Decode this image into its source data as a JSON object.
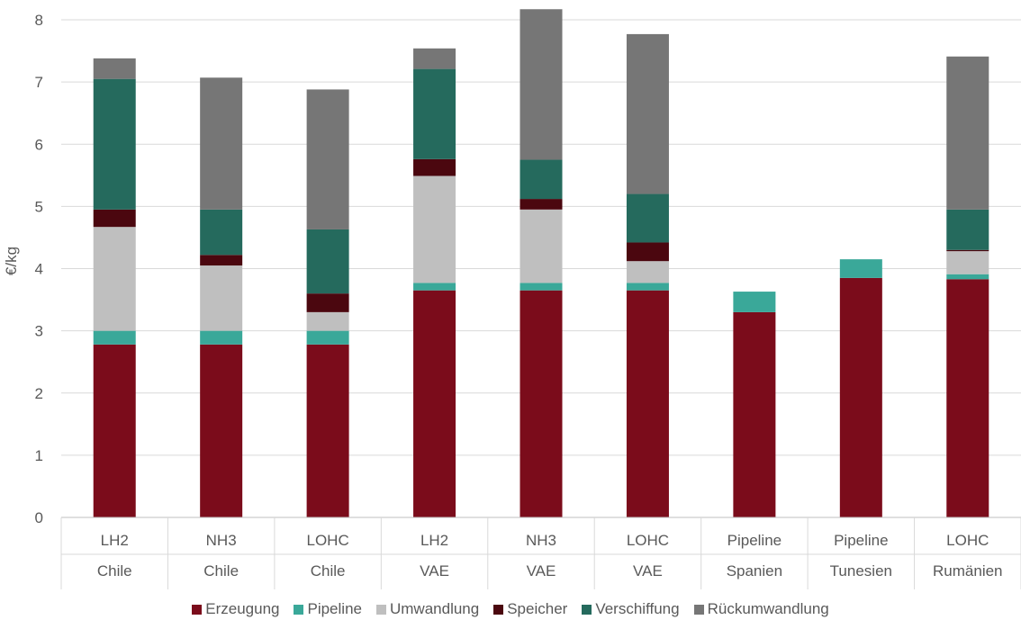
{
  "chart_data": {
    "type": "bar",
    "stacked": true,
    "ylabel": "€/kg",
    "ylim": [
      0,
      8
    ],
    "yticks": [
      "0",
      "1",
      "2",
      "3",
      "4",
      "5",
      "6",
      "7",
      "8"
    ],
    "grid": true,
    "legend_position": "bottom",
    "categories": [
      {
        "carrier": "LH2",
        "country": "Chile"
      },
      {
        "carrier": "NH3",
        "country": "Chile"
      },
      {
        "carrier": "LOHC",
        "country": "Chile"
      },
      {
        "carrier": "LH2",
        "country": "VAE"
      },
      {
        "carrier": "NH3",
        "country": "VAE"
      },
      {
        "carrier": "LOHC",
        "country": "VAE"
      },
      {
        "carrier": "Pipeline",
        "country": "Spanien"
      },
      {
        "carrier": "Pipeline",
        "country": "Tunesien"
      },
      {
        "carrier": "LOHC",
        "country": "Rumänien"
      }
    ],
    "series": [
      {
        "name": "Erzeugung",
        "color": "#7b0c1b",
        "values": [
          2.78,
          2.78,
          2.78,
          3.65,
          3.65,
          3.65,
          3.3,
          3.85,
          3.83
        ]
      },
      {
        "name": "Pipeline",
        "color": "#3aa899",
        "values": [
          0.22,
          0.22,
          0.22,
          0.12,
          0.12,
          0.12,
          0.33,
          0.3,
          0.08
        ]
      },
      {
        "name": "Umwandlung",
        "color": "#bfbfbf",
        "values": [
          1.67,
          1.05,
          0.3,
          1.72,
          1.18,
          0.35,
          0,
          0,
          0.37
        ]
      },
      {
        "name": "Speicher",
        "color": "#4b070f",
        "values": [
          0.28,
          0.17,
          0.3,
          0.27,
          0.17,
          0.3,
          0,
          0,
          0.02
        ]
      },
      {
        "name": "Verschiffung",
        "color": "#256a5d",
        "values": [
          2.1,
          0.73,
          1.03,
          1.45,
          0.63,
          0.78,
          0,
          0,
          0.65
        ]
      },
      {
        "name": "Rückumwandlung",
        "color": "#767676",
        "values": [
          0.33,
          2.12,
          2.25,
          0.33,
          2.42,
          2.57,
          0,
          0,
          2.46
        ]
      }
    ]
  }
}
